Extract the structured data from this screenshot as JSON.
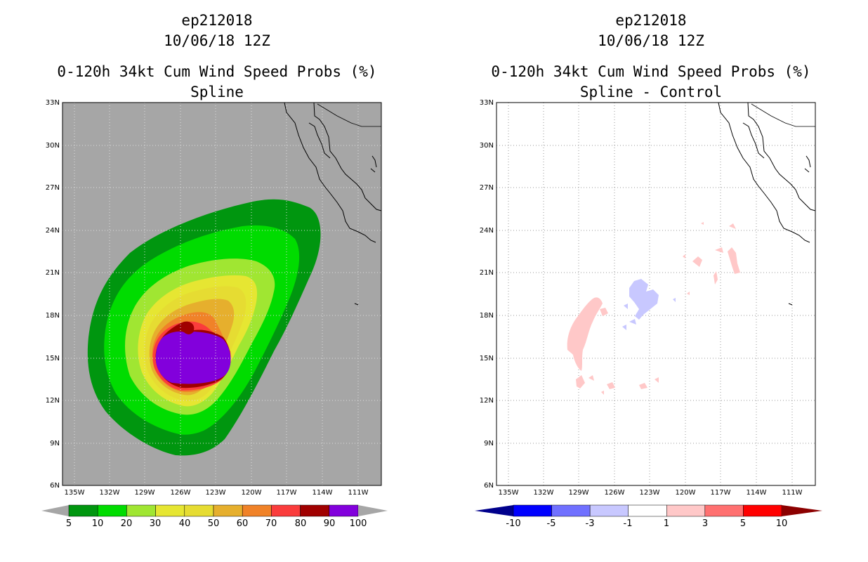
{
  "left_panel": {
    "title_line1": "ep212018",
    "title_line2": "10/06/18 12Z",
    "title_line3": "0-120h 34kt Cum Wind Speed Probs (%)",
    "title_line4": "Spline",
    "background_color": "#a6a6a6",
    "colorbar": {
      "labels": [
        "5",
        "10",
        "20",
        "30",
        "40",
        "50",
        "60",
        "70",
        "80",
        "90",
        "100"
      ],
      "colors": [
        "#00960f",
        "#00dc00",
        "#a0e632",
        "#e6e632",
        "#e6dc32",
        "#e6af2d",
        "#f08228",
        "#fa3c3c",
        "#a00000",
        "#8200dc"
      ],
      "arrow_color": "#a6a6a6"
    }
  },
  "right_panel": {
    "title_line1": "ep212018",
    "title_line2": "10/06/18 12Z",
    "title_line3": "0-120h 34kt Cum Wind Speed Probs (%)",
    "title_line4": "Spline - Control",
    "background_color": "#ffffff",
    "colorbar": {
      "labels": [
        "-10",
        "-5",
        "-3",
        "-1",
        "1",
        "3",
        "5",
        "10"
      ],
      "colors": [
        "#0000ff",
        "#7070ff",
        "#c8c8ff",
        "#ffffff",
        "#ffc8c8",
        "#ff7070",
        "#ff0000"
      ],
      "low_arrow_color": "#00008c",
      "high_arrow_color": "#8c0000"
    }
  },
  "axes": {
    "lat_labels": [
      "33N",
      "30N",
      "27N",
      "24N",
      "21N",
      "18N",
      "15N",
      "12N",
      "9N",
      "6N"
    ],
    "lon_labels": [
      "135W",
      "132W",
      "129W",
      "126W",
      "123W",
      "120W",
      "117W",
      "114W",
      "111W"
    ],
    "lat_range": [
      6,
      33
    ],
    "lon_range": [
      -136,
      -109
    ]
  }
}
